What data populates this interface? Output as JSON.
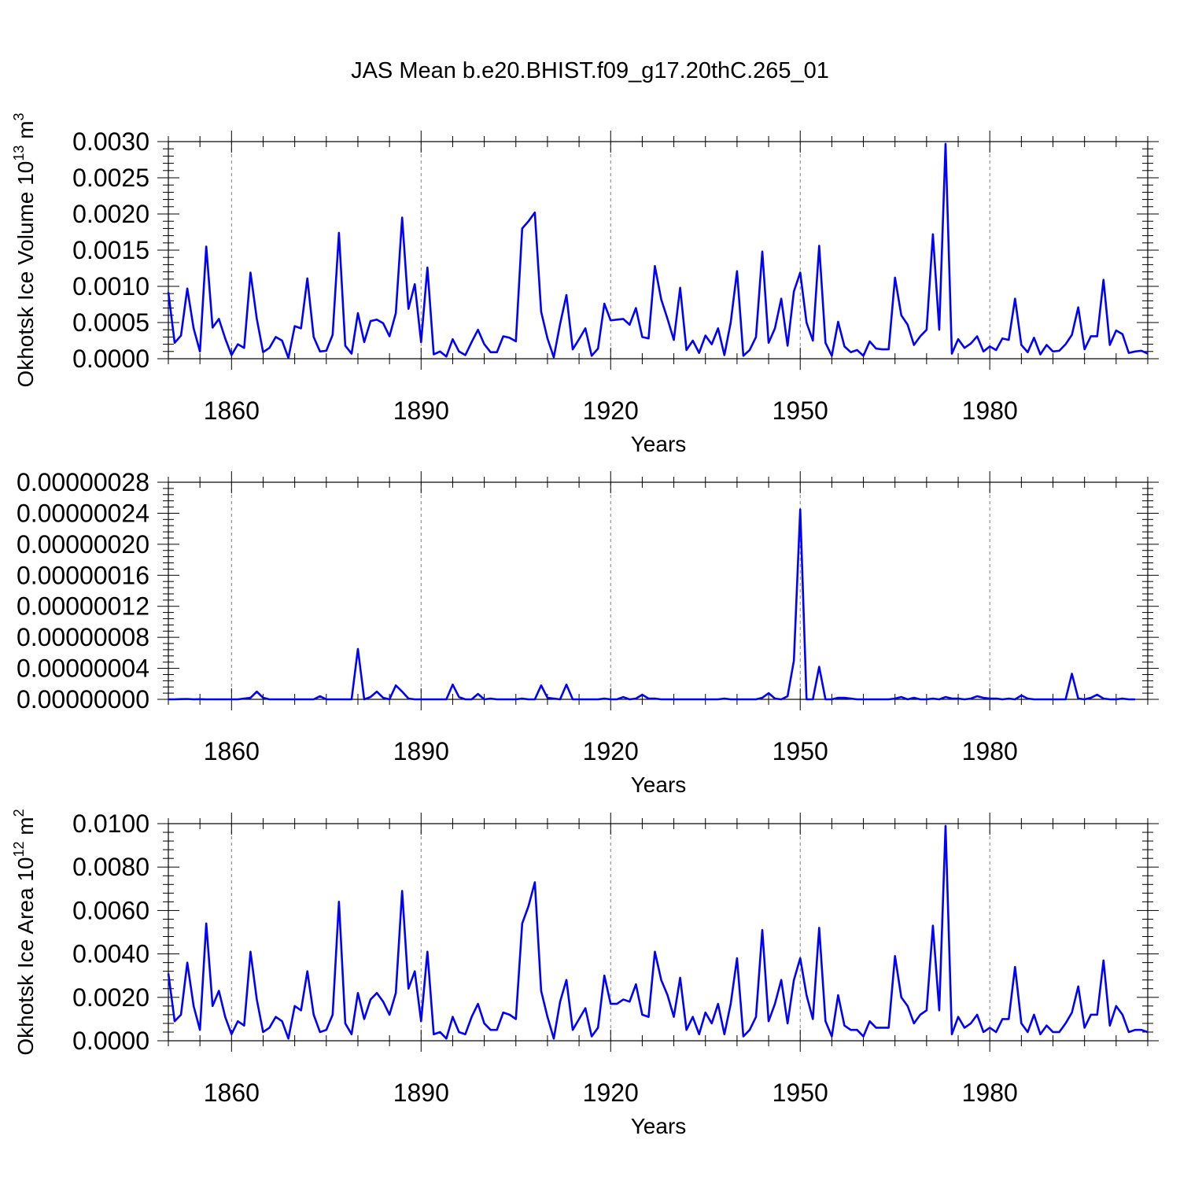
{
  "title": "JAS Mean b.e20.BHIST.f09_g17.20thC.265_01",
  "colors": {
    "line": "#0000ff",
    "axis": "#000000",
    "grid": "#808080"
  },
  "chart_data": [
    {
      "type": "line",
      "xlabel": "Years",
      "ylabel": "Okhotsk Ice Volume",
      "ylabel_unit": "10",
      "ylabel_unit_sup": "13",
      "ylabel_unit_m": "m",
      "ylabel_unit_m_sup": "3",
      "xlim": [
        1850,
        2005
      ],
      "ylim": [
        0,
        0.003
      ],
      "xticks": [
        1860,
        1890,
        1920,
        1950,
        1980
      ],
      "yticks": [
        0,
        0.0005,
        0.001,
        0.0015,
        0.002,
        0.0025,
        0.003
      ],
      "ytick_labels": [
        "0.0000",
        "0.0005",
        "0.0010",
        "0.0015",
        "0.0020",
        "0.0025",
        "0.0030"
      ],
      "x_start": 1850,
      "values": [
        0.00092,
        0.00022,
        0.00032,
        0.00097,
        0.00042,
        0.0001,
        0.00155,
        0.00043,
        0.00055,
        0.00028,
        5e-05,
        0.0002,
        0.00015,
        0.00119,
        0.00055,
        9e-05,
        0.00015,
        0.0003,
        0.00025,
        1e-05,
        0.00045,
        0.00042,
        0.00111,
        0.0003,
        0.0001,
        0.00011,
        0.00033,
        0.00174,
        0.00018,
        7e-05,
        0.00063,
        0.00023,
        0.00052,
        0.00054,
        0.00049,
        0.00031,
        0.00063,
        0.00195,
        0.00069,
        0.00103,
        0.00023,
        0.00126,
        6e-05,
        0.0001,
        3e-05,
        0.00027,
        0.0001,
        5e-05,
        0.00023,
        0.0004,
        0.0002,
        9e-05,
        9e-05,
        0.00031,
        0.00029,
        0.00024,
        0.0018,
        0.0019,
        0.00202,
        0.00065,
        0.00028,
        2e-05,
        0.00048,
        0.00088,
        0.00013,
        0.00027,
        0.00042,
        4e-05,
        0.00014,
        0.00076,
        0.00053,
        0.00054,
        0.00055,
        0.00047,
        0.0007,
        0.0003,
        0.00028,
        0.00128,
        0.00082,
        0.00055,
        0.00026,
        0.00098,
        0.00012,
        0.00025,
        8e-05,
        0.00032,
        0.0002,
        0.00042,
        5e-05,
        0.0005,
        0.00121,
        4e-05,
        0.00012,
        0.0003,
        0.00148,
        0.00022,
        0.00042,
        0.00083,
        0.00018,
        0.00093,
        0.00119,
        0.0005,
        0.00025,
        0.00156,
        0.00022,
        4e-05,
        0.00051,
        0.00017,
        9e-05,
        0.00012,
        4e-05,
        0.00024,
        0.00014,
        0.00013,
        0.00013,
        0.00112,
        0.0006,
        0.00047,
        0.00019,
        0.00031,
        0.0004,
        0.00172,
        0.0004,
        0.00297,
        7e-05,
        0.00027,
        0.00015,
        0.00021,
        0.00031,
        0.0001,
        0.00017,
        0.00012,
        0.00028,
        0.00026,
        0.00083,
        0.00019,
        9e-05,
        0.00029,
        6e-05,
        0.00019,
        0.0001,
        0.00011,
        0.0002,
        0.00033,
        0.00071,
        0.00013,
        0.00031,
        0.00031,
        0.00109,
        0.00019,
        0.00039,
        0.00034,
        8e-05,
        0.0001,
        0.00011,
        7e-05
      ]
    },
    {
      "type": "line",
      "xlabel": "Years",
      "ylabel": "",
      "xlim": [
        1850,
        2005
      ],
      "ylim": [
        0,
        2.8e-07
      ],
      "xticks": [
        1860,
        1890,
        1920,
        1950,
        1980
      ],
      "yticks": [
        0,
        4e-08,
        8e-08,
        1.2e-07,
        1.6e-07,
        2e-07,
        2.4e-07,
        2.8e-07
      ],
      "ytick_labels": [
        "0.00000000",
        "0.00000004",
        "0.00000008",
        "0.00000012",
        "0.00000016",
        "0.00000020",
        "0.00000024",
        "0.00000028"
      ],
      "x_start": 1850,
      "values": [
        0,
        0,
        3e-10,
        5e-10,
        0,
        2e-10,
        0,
        0,
        0,
        0,
        0,
        0,
        1e-09,
        2e-09,
        1e-08,
        2e-09,
        0,
        0,
        0,
        0,
        0,
        0,
        0,
        0,
        4e-09,
        0,
        0,
        0,
        0,
        0,
        6.5e-08,
        0,
        3e-09,
        1e-08,
        2e-09,
        0,
        1.8e-08,
        1e-08,
        1e-09,
        0,
        0,
        0,
        0,
        0,
        0,
        1.9e-08,
        3e-09,
        0,
        0,
        7e-09,
        0,
        1e-09,
        0,
        0,
        0,
        0,
        1e-09,
        0,
        0,
        1.8e-08,
        2e-09,
        1e-09,
        0,
        1.9e-08,
        0,
        0,
        0,
        0,
        0,
        1e-09,
        0,
        0,
        3e-09,
        0,
        1e-09,
        6e-09,
        1e-09,
        1e-09,
        0,
        0,
        0,
        0,
        0,
        0,
        0,
        0,
        0,
        0,
        1e-09,
        0,
        0,
        0,
        0,
        0,
        2e-09,
        8e-09,
        1e-09,
        0,
        4e-09,
        5e-08,
        2.45e-07,
        0,
        0,
        4.2e-08,
        0,
        0,
        2e-09,
        2e-09,
        1e-09,
        0,
        0,
        0,
        0,
        0,
        0,
        1e-09,
        3e-09,
        0,
        2e-09,
        0,
        0,
        1e-09,
        0,
        3e-09,
        1e-09,
        1e-09,
        0,
        1e-09,
        4e-09,
        2e-09,
        1e-09,
        1e-09,
        0,
        1e-09,
        0,
        5e-09,
        1e-09,
        0,
        0,
        0,
        0,
        0,
        0,
        3.3e-08,
        1e-09,
        0,
        2e-09,
        6e-09,
        1e-09,
        0,
        0,
        1e-09,
        0,
        0
      ]
    },
    {
      "type": "line",
      "xlabel": "Years",
      "ylabel": "Okhotsk Ice Area",
      "ylabel_unit": "10",
      "ylabel_unit_sup": "12",
      "ylabel_unit_m": "m",
      "ylabel_unit_m_sup": "2",
      "xlim": [
        1850,
        2005
      ],
      "ylim": [
        0,
        0.01
      ],
      "xticks": [
        1860,
        1890,
        1920,
        1950,
        1980
      ],
      "yticks": [
        0,
        0.002,
        0.004,
        0.006,
        0.008,
        0.01
      ],
      "ytick_labels": [
        "0.0000",
        "0.0020",
        "0.0040",
        "0.0060",
        "0.0080",
        "0.0100"
      ],
      "x_start": 1850,
      "values": [
        0.0031,
        0.0009,
        0.0012,
        0.0036,
        0.0016,
        0.0005,
        0.0054,
        0.0016,
        0.0023,
        0.0011,
        0.0003,
        0.0009,
        0.0007,
        0.0041,
        0.0019,
        0.0004,
        0.0006,
        0.0011,
        0.0009,
        0.0001,
        0.0016,
        0.0014,
        0.0032,
        0.0012,
        0.0004,
        0.0005,
        0.0012,
        0.0064,
        0.0008,
        0.0003,
        0.0022,
        0.001,
        0.0019,
        0.0022,
        0.0018,
        0.0012,
        0.0022,
        0.0069,
        0.0024,
        0.0032,
        0.0009,
        0.0041,
        0.0003,
        0.0004,
        0.0001,
        0.0011,
        0.0004,
        0.0003,
        0.0011,
        0.0017,
        0.0008,
        0.0005,
        0.0005,
        0.0013,
        0.0012,
        0.001,
        0.0054,
        0.0062,
        0.0073,
        0.0023,
        0.0011,
        0.0001,
        0.0018,
        0.0028,
        0.0005,
        0.001,
        0.0015,
        0.0002,
        0.0006,
        0.003,
        0.0017,
        0.0017,
        0.0019,
        0.0018,
        0.0026,
        0.0012,
        0.0011,
        0.0041,
        0.0028,
        0.0021,
        0.0011,
        0.0029,
        0.0005,
        0.0011,
        0.0003,
        0.0013,
        0.0008,
        0.0017,
        0.0003,
        0.0017,
        0.0038,
        0.0002,
        0.0005,
        0.0011,
        0.0051,
        0.0009,
        0.0017,
        0.0028,
        0.0008,
        0.0028,
        0.0038,
        0.0021,
        0.001,
        0.0052,
        0.0009,
        0.0002,
        0.0021,
        0.0007,
        0.0005,
        0.0005,
        0.0002,
        0.0009,
        0.0006,
        0.0006,
        0.0006,
        0.0039,
        0.002,
        0.0016,
        0.0008,
        0.0012,
        0.0014,
        0.0053,
        0.0014,
        0.0099,
        0.0003,
        0.0011,
        0.0006,
        0.0008,
        0.0012,
        0.0004,
        0.0006,
        0.0004,
        0.001,
        0.001,
        0.0034,
        0.0008,
        0.0004,
        0.0012,
        0.0003,
        0.0007,
        0.0004,
        0.0004,
        0.0008,
        0.0013,
        0.0025,
        0.0006,
        0.0012,
        0.0012,
        0.0037,
        0.0007,
        0.0016,
        0.0012,
        0.0004,
        0.0005,
        0.0005,
        0.0004
      ]
    }
  ]
}
